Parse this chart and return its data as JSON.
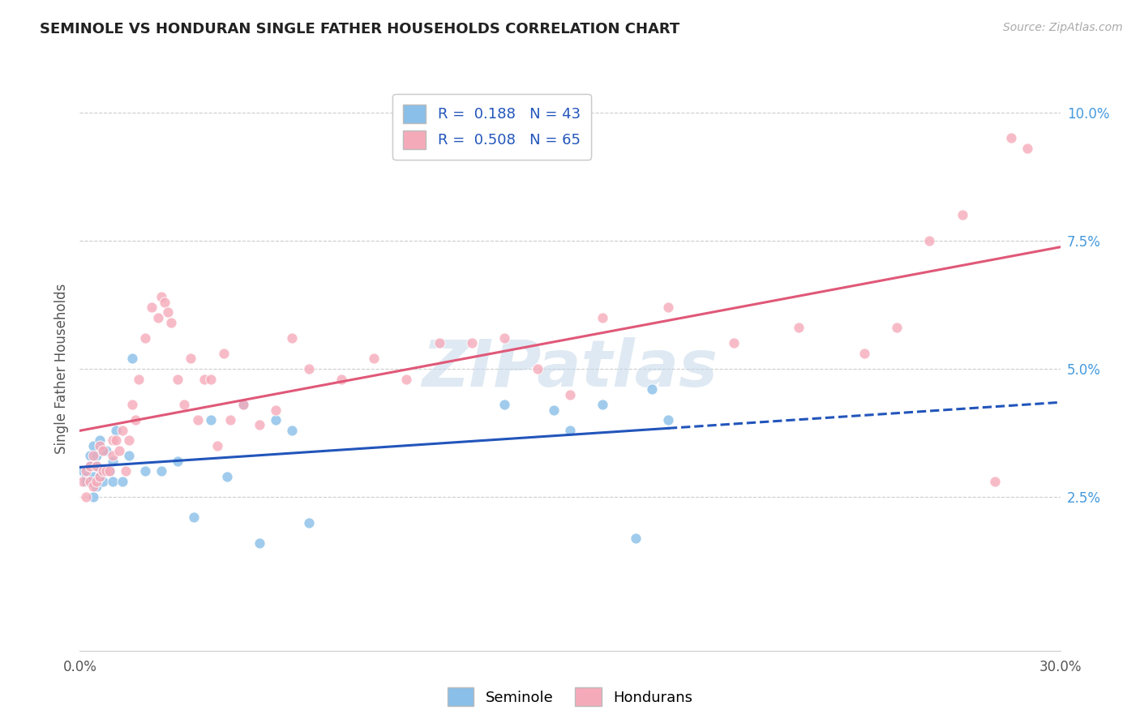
{
  "title": "SEMINOLE VS HONDURAN SINGLE FATHER HOUSEHOLDS CORRELATION CHART",
  "source": "Source: ZipAtlas.com",
  "ylabel": "Single Father Households",
  "xlim": [
    0.0,
    0.3
  ],
  "ylim": [
    -0.005,
    0.105
  ],
  "xtick_positions": [
    0.0,
    0.05,
    0.1,
    0.15,
    0.2,
    0.25,
    0.3
  ],
  "xtick_labels": [
    "0.0%",
    "",
    "",
    "",
    "",
    "",
    "30.0%"
  ],
  "yticks_right": [
    0.025,
    0.05,
    0.075,
    0.1
  ],
  "ytick_labels_right": [
    "2.5%",
    "5.0%",
    "7.5%",
    "10.0%"
  ],
  "seminole_R": 0.188,
  "seminole_N": 43,
  "honduran_R": 0.508,
  "honduran_N": 65,
  "seminole_color": "#89bfe8",
  "honduran_color": "#f5aaba",
  "seminole_line_color": "#2255bb",
  "honduran_line_color": "#e05878",
  "background_color": "#ffffff",
  "grid_color": "#cccccc",
  "watermark_text": "ZIPatlas",
  "seminole_x": [
    0.001,
    0.002,
    0.002,
    0.003,
    0.003,
    0.003,
    0.004,
    0.004,
    0.004,
    0.005,
    0.005,
    0.005,
    0.006,
    0.006,
    0.007,
    0.007,
    0.007,
    0.008,
    0.009,
    0.01,
    0.01,
    0.011,
    0.013,
    0.015,
    0.016,
    0.02,
    0.025,
    0.03,
    0.035,
    0.04,
    0.045,
    0.05,
    0.055,
    0.06,
    0.065,
    0.07,
    0.13,
    0.145,
    0.15,
    0.16,
    0.17,
    0.175,
    0.18
  ],
  "seminole_y": [
    0.03,
    0.029,
    0.028,
    0.033,
    0.031,
    0.028,
    0.035,
    0.029,
    0.025,
    0.033,
    0.031,
    0.027,
    0.036,
    0.029,
    0.034,
    0.03,
    0.028,
    0.034,
    0.03,
    0.028,
    0.032,
    0.038,
    0.028,
    0.033,
    0.052,
    0.03,
    0.03,
    0.032,
    0.021,
    0.04,
    0.029,
    0.043,
    0.016,
    0.04,
    0.038,
    0.02,
    0.043,
    0.042,
    0.038,
    0.043,
    0.017,
    0.046,
    0.04
  ],
  "honduran_x": [
    0.001,
    0.002,
    0.002,
    0.003,
    0.003,
    0.004,
    0.004,
    0.005,
    0.005,
    0.006,
    0.006,
    0.007,
    0.007,
    0.008,
    0.009,
    0.01,
    0.01,
    0.011,
    0.012,
    0.013,
    0.014,
    0.015,
    0.016,
    0.017,
    0.018,
    0.02,
    0.022,
    0.024,
    0.025,
    0.026,
    0.027,
    0.028,
    0.03,
    0.032,
    0.034,
    0.036,
    0.038,
    0.04,
    0.042,
    0.044,
    0.046,
    0.05,
    0.055,
    0.06,
    0.065,
    0.07,
    0.08,
    0.09,
    0.1,
    0.11,
    0.12,
    0.13,
    0.14,
    0.15,
    0.16,
    0.18,
    0.2,
    0.22,
    0.24,
    0.25,
    0.26,
    0.27,
    0.28,
    0.285,
    0.29
  ],
  "honduran_y": [
    0.028,
    0.03,
    0.025,
    0.031,
    0.028,
    0.033,
    0.027,
    0.031,
    0.028,
    0.035,
    0.029,
    0.034,
    0.03,
    0.03,
    0.03,
    0.033,
    0.036,
    0.036,
    0.034,
    0.038,
    0.03,
    0.036,
    0.043,
    0.04,
    0.048,
    0.056,
    0.062,
    0.06,
    0.064,
    0.063,
    0.061,
    0.059,
    0.048,
    0.043,
    0.052,
    0.04,
    0.048,
    0.048,
    0.035,
    0.053,
    0.04,
    0.043,
    0.039,
    0.042,
    0.056,
    0.05,
    0.048,
    0.052,
    0.048,
    0.055,
    0.055,
    0.056,
    0.05,
    0.045,
    0.06,
    0.062,
    0.055,
    0.058,
    0.053,
    0.058,
    0.075,
    0.08,
    0.028,
    0.095,
    0.093
  ]
}
